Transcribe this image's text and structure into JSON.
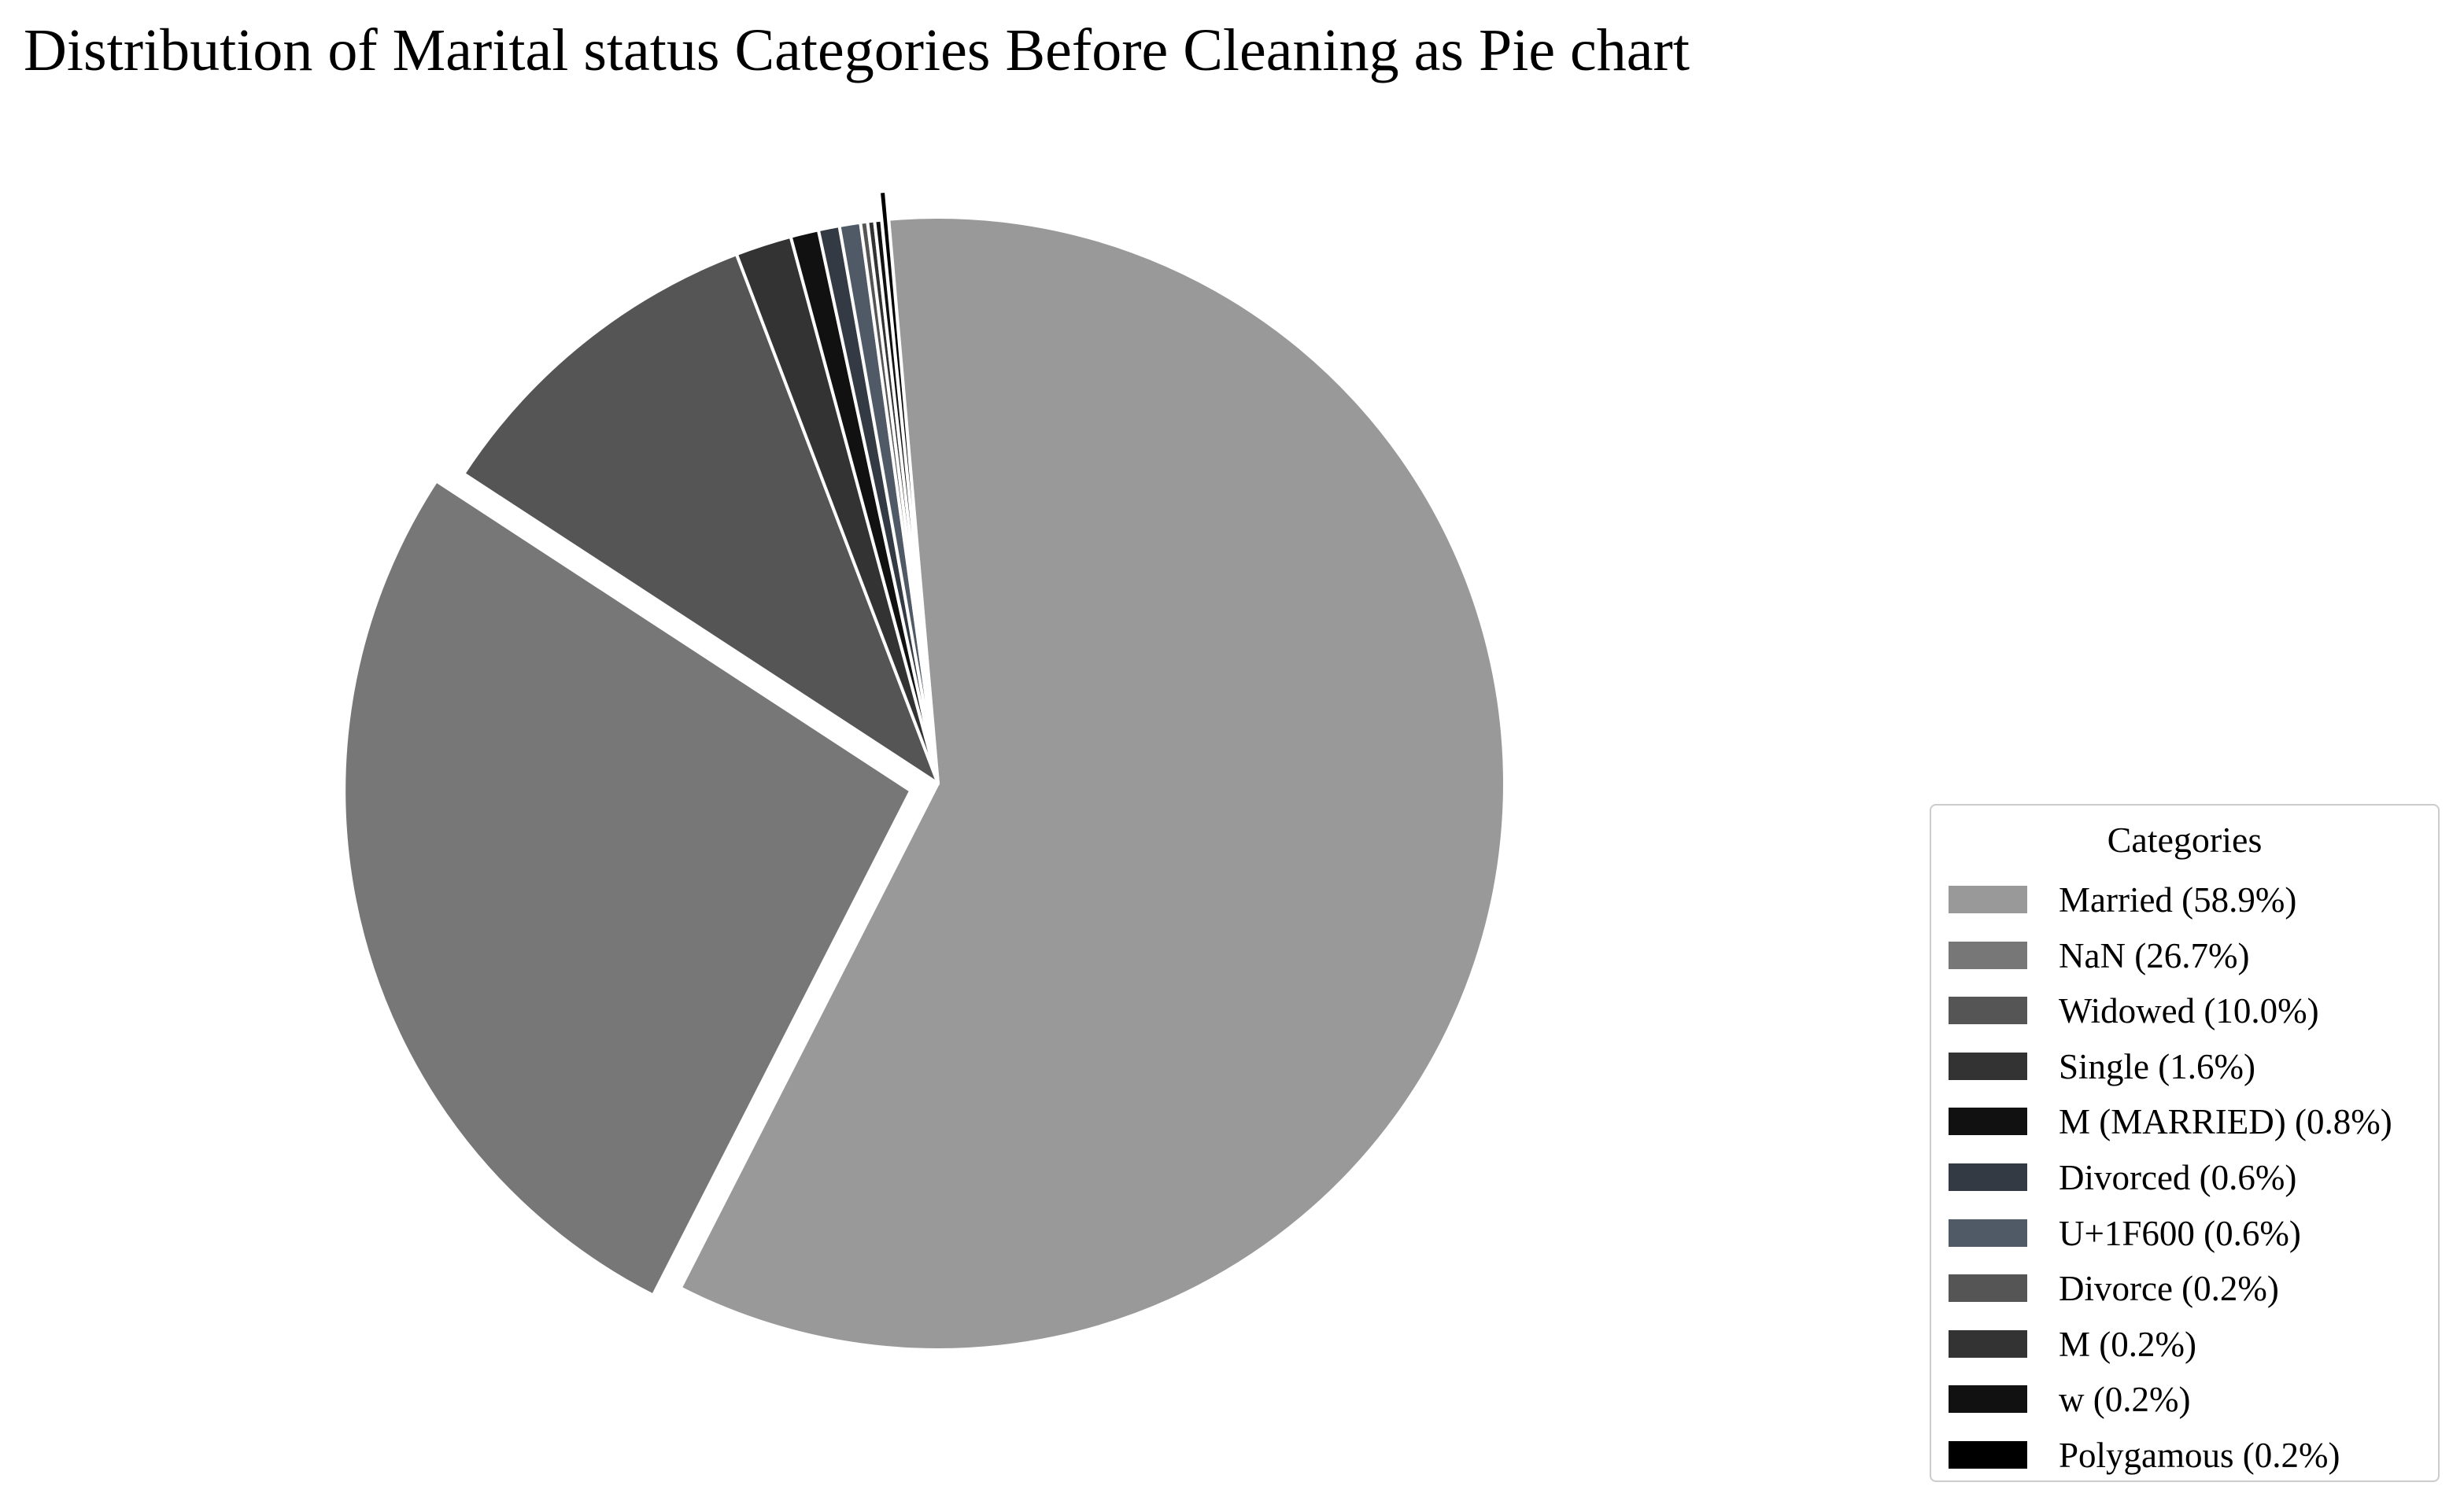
{
  "chart_data": {
    "type": "pie",
    "title": "Distribution of Marital status Categories Before Cleaning as Pie chart",
    "legend_title": "Categories",
    "legend_position": "bottom-right",
    "start_angle_degrees": 95,
    "direction": "clockwise",
    "exploded": [
      "NaN",
      "Polygamous"
    ],
    "slices": [
      {
        "label": "Married",
        "value": 58.9,
        "legend": "Married (58.9%)",
        "color": "#999999"
      },
      {
        "label": "NaN",
        "value": 26.7,
        "legend": "NaN (26.7%)",
        "color": "#777777"
      },
      {
        "label": "Widowed",
        "value": 10.0,
        "legend": "Widowed (10.0%)",
        "color": "#555555"
      },
      {
        "label": "Single",
        "value": 1.6,
        "legend": "Single (1.6%)",
        "color": "#333333"
      },
      {
        "label": "M (MARRIED)",
        "value": 0.8,
        "legend": "M (MARRIED) (0.8%)",
        "color": "#111111"
      },
      {
        "label": "Divorced",
        "value": 0.6,
        "legend": "Divorced (0.6%)",
        "color": "#333a44"
      },
      {
        "label": "U+1F600",
        "value": 0.6,
        "legend": "U+1F600 (0.6%)",
        "color": "#505a66"
      },
      {
        "label": "Divorce",
        "value": 0.2,
        "legend": "Divorce (0.2%)",
        "color": "#555555"
      },
      {
        "label": "M",
        "value": 0.2,
        "legend": "M (0.2%)",
        "color": "#333333"
      },
      {
        "label": "w",
        "value": 0.2,
        "legend": "w (0.2%)",
        "color": "#111111"
      },
      {
        "label": "Polygamous",
        "value": 0.2,
        "legend": "Polygamous (0.2%)",
        "color": "#000000"
      }
    ]
  }
}
